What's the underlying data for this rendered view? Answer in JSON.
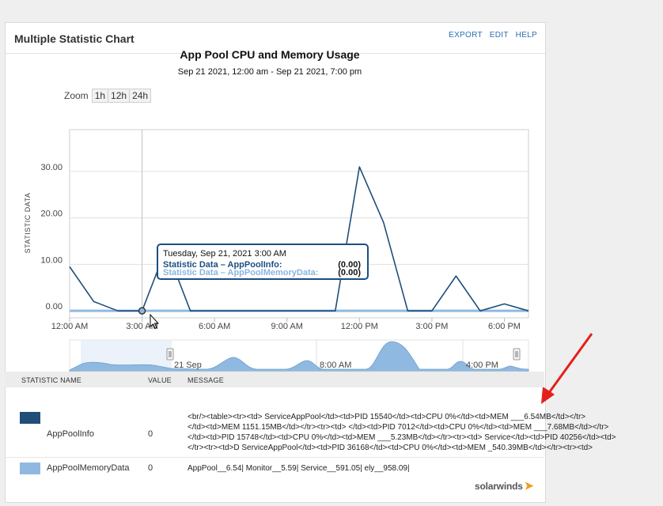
{
  "panel": {
    "title": "Multiple Statistic Chart",
    "links": [
      "EXPORT",
      "EDIT",
      "HELP"
    ]
  },
  "chart_data": {
    "type": "line",
    "title": "App Pool CPU and Memory Usage",
    "subtitle": "Sep 21 2021, 12:00 am - Sep 21 2021, 7:00 pm",
    "ylabel": "STATISTIC DATA",
    "xlabel": "",
    "ylim": [
      -1.5,
      39
    ],
    "xlim": [
      0,
      19
    ],
    "yticks": [
      0,
      10,
      20,
      30
    ],
    "ytick_labels": [
      "0.00",
      "10.00",
      "20.00",
      "30.00"
    ],
    "xticks": [
      0,
      3,
      6,
      9,
      12,
      15,
      18
    ],
    "xtick_labels": [
      "12:00 AM",
      "3:00 AM",
      "6:00 AM",
      "9:00 AM",
      "12:00 PM",
      "3:00 PM",
      "6:00 PM"
    ],
    "grid": true,
    "series": [
      {
        "name": "AppPoolInfo",
        "color": "#1f4e79",
        "x": [
          0,
          1,
          2,
          3,
          4,
          5,
          6,
          7,
          8,
          9,
          10,
          11,
          12,
          13,
          14,
          15,
          16,
          17,
          18,
          19
        ],
        "values": [
          9.5,
          2,
          0,
          0,
          13.5,
          0,
          0,
          0,
          0,
          0,
          0,
          0,
          31,
          19,
          0,
          0,
          7.5,
          0,
          1.5,
          0
        ]
      },
      {
        "name": "AppPoolMemoryData",
        "color": "#8fb9e0",
        "x": [
          0,
          19
        ],
        "values": [
          0,
          0
        ]
      }
    ],
    "crosshair_x": 3
  },
  "zoom": {
    "label": "Zoom",
    "buttons": [
      "1h",
      "12h",
      "24h"
    ]
  },
  "navigator": {
    "labels": [
      "21 Sep",
      "8:00 AM",
      "4:00 PM"
    ],
    "scroll_glyph": "|||"
  },
  "tooltip": {
    "date": "Tuesday, Sep 21, 2021 3:00 AM",
    "rows": [
      {
        "label": "Statistic Data – AppPoolInfo:",
        "value": "(0.00)"
      },
      {
        "label": "Statistic Data – AppPoolMemoryData:",
        "value": "(0.00)"
      }
    ]
  },
  "table": {
    "headers": [
      "STATISTIC NAME",
      "VALUE",
      "MESSAGE"
    ],
    "rows": [
      {
        "name": "AppPoolInfo",
        "value": "0",
        "color": "#1f4e79",
        "message": [
          "<br/><table><tr><td>           ServiceAppPool</td><td>PID 15540</td><td>CPU 0%</td><td>MEM ___6.54MB</td></tr>",
          "</td><td>MEM 1151.15MB</td></tr><tr><td>           </td><td>PID 7012</td><td>CPU 0%</td><td>MEM ___7.68MB</td></tr>",
          "</td><td>PID 15748</td><td>CPU 0%</td><td>MEM ___5.23MB</td></tr><tr><td>           Service</td><td>PID 40256</td><td>",
          "</tr><tr><td>D            ServiceAppPool</td><td>PID 36168</td><td>CPU 0%</td><td>MEM _540.39MB</td></tr><tr><td>"
        ]
      },
      {
        "name": "AppPoolMemoryData",
        "value": "0",
        "color": "#8fb9e0",
        "message": [
          "AppPool__6.54|        Monitor__5.59|        Service__591.05|          ely__958.09|"
        ]
      }
    ]
  },
  "footer": {
    "logo_text": "solarwinds"
  }
}
